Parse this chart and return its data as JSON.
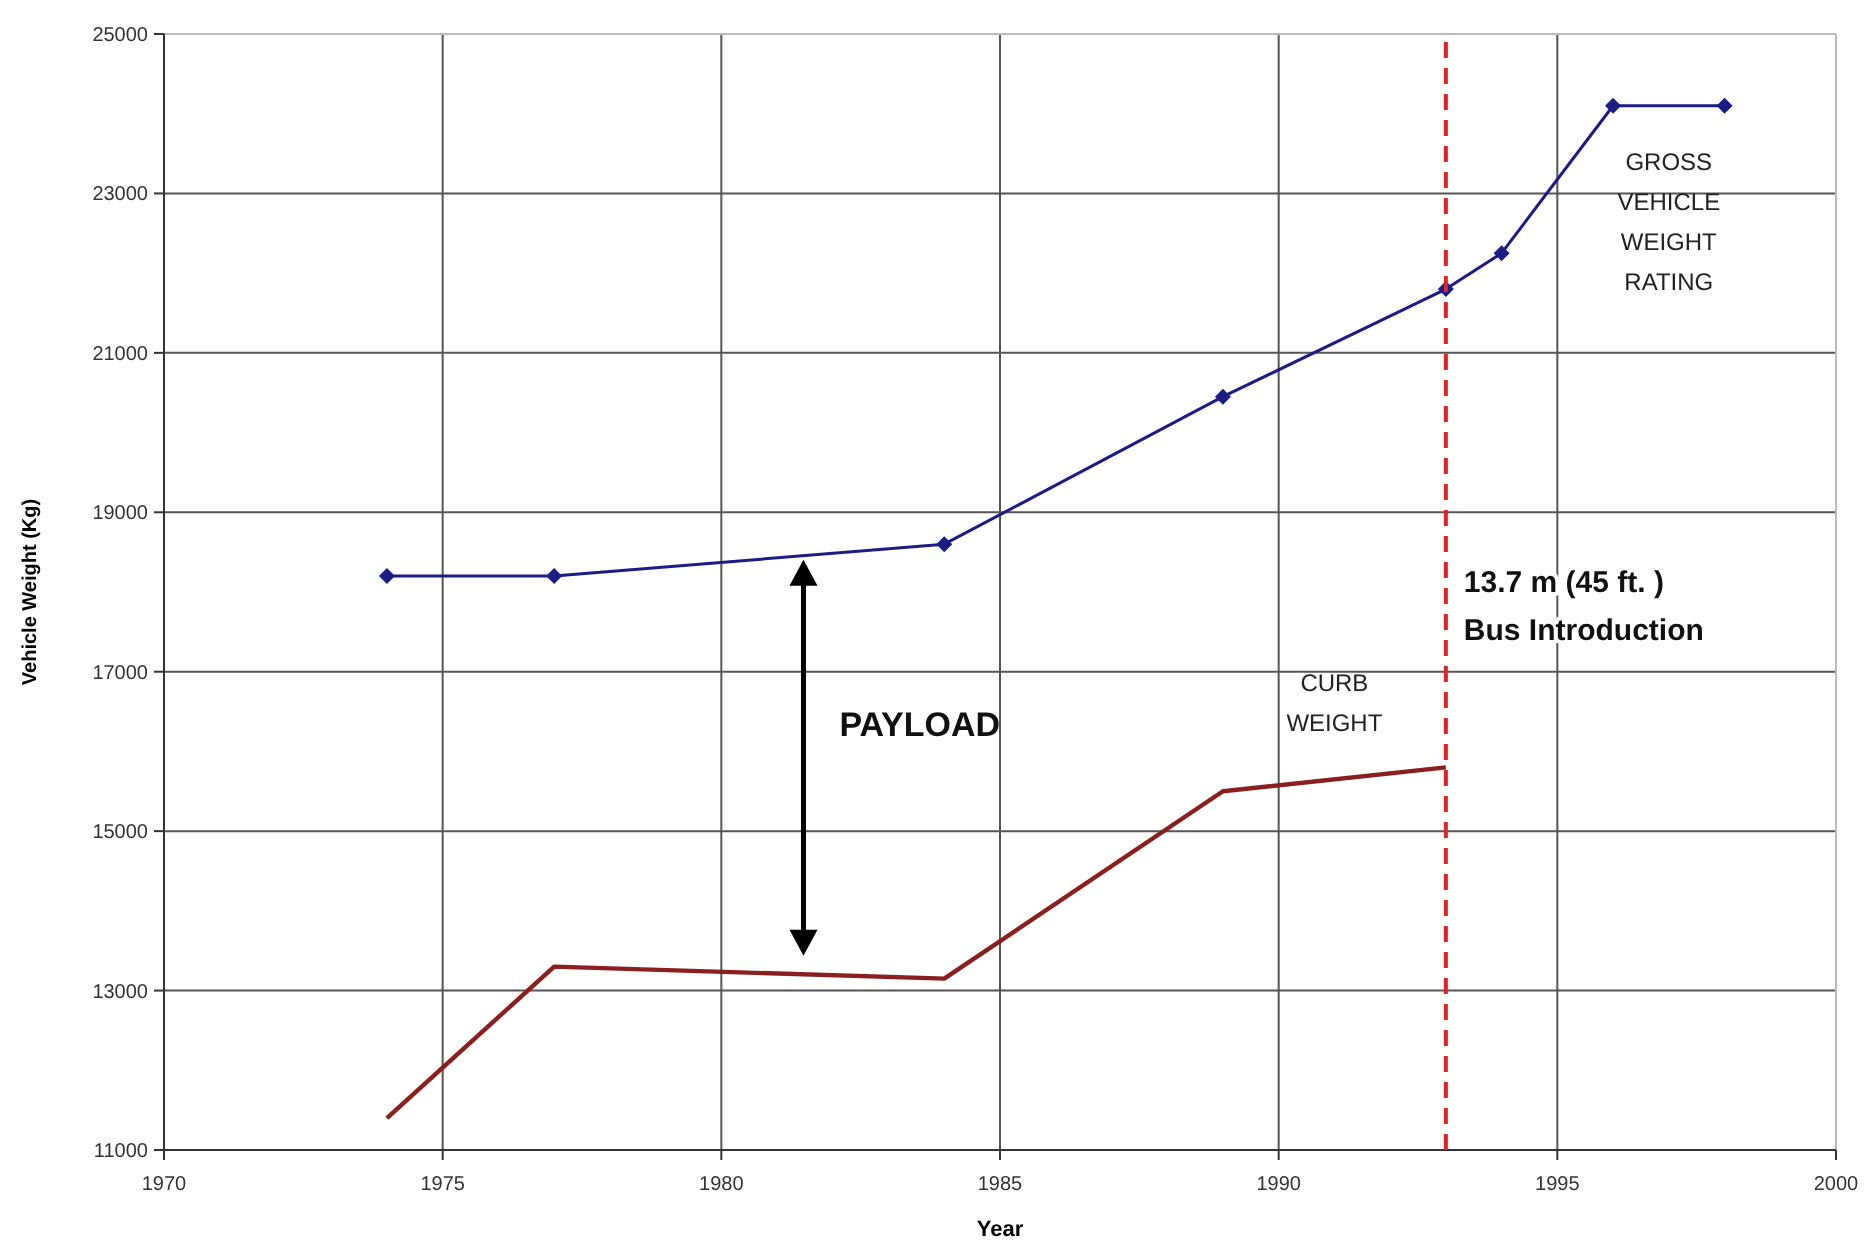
{
  "chart_data": {
    "type": "line",
    "xlabel": "Year",
    "ylabel": "Vehicle Weight (Kg)",
    "xlim": [
      1970,
      2000
    ],
    "xticks": [
      1970,
      1975,
      1980,
      1985,
      1990,
      1995,
      2000
    ],
    "ylim": [
      11000,
      25000
    ],
    "yticks": [
      11000,
      13000,
      15000,
      17000,
      19000,
      21000,
      23000,
      25000
    ],
    "grid": true,
    "series": [
      {
        "name": "GROSS VEHICLE WEIGHT RATING",
        "color": "#1c1c85",
        "marker": "diamond",
        "x": [
          1974,
          1977,
          1984,
          1989,
          1993,
          1994,
          1996,
          1998
        ],
        "values": [
          18200,
          18200,
          18600,
          20450,
          21800,
          22250,
          24100,
          24100
        ]
      },
      {
        "name": "CURB WEIGHT",
        "color": "#8b1f1f",
        "marker": "none",
        "x": [
          1974,
          1977,
          1984,
          1989,
          1993
        ],
        "values": [
          11400,
          13300,
          13150,
          15500,
          15800
        ]
      }
    ],
    "ref_lines": [
      {
        "axis": "x",
        "value": 1993,
        "label": "13.7 m (45 ft. )\nBus Introduction",
        "color": "#e02424",
        "line_style": "dashed"
      }
    ],
    "annotations": [
      "PAYLOAD"
    ]
  }
}
